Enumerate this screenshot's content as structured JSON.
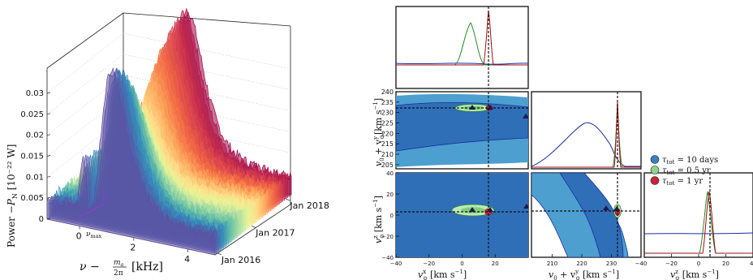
{
  "chart_data": [
    {
      "type": "area",
      "subtype": "3d-waterfall",
      "ylabel": "Power −P_N [10⁻²² W]",
      "ylabel_main": "Power −",
      "ylabel_sym": "P",
      "ylabel_sub": "N",
      "ylabel_unit": " [10⁻²² W]",
      "xlabel": "ν − m_a/2π [kHz]",
      "xlabel_nu": "ν −",
      "xlabel_frac_num": "m",
      "xlabel_frac_sub": "a",
      "xlabel_frac_den": "2π",
      "xlabel_unit": "[kHz]",
      "z_ticks": [
        "0",
        "0.005",
        "0.01",
        "0.015",
        "0.02",
        "0.025",
        "0.03"
      ],
      "z_tick_values": [
        0,
        0.005,
        0.01,
        0.015,
        0.02,
        0.025,
        0.03
      ],
      "x_ticks": [
        "0",
        "2",
        "4"
      ],
      "x_tick_values": [
        0,
        2,
        4
      ],
      "time_ticks": [
        "Jan 2016",
        "Jan 2017",
        "Jan 2018"
      ],
      "vmax_label": "ν_max",
      "vmax_sym": "ν",
      "vmax_sub": "max",
      "vmax_value": 0.2,
      "peak_power_approx": 0.034,
      "peak_frequency_approx": 1.2,
      "colormap": [
        "#5e4fa2",
        "#3288bd",
        "#66c2a5",
        "#abdda4",
        "#e6f598",
        "#fee08b",
        "#fdae61",
        "#f46d43",
        "#d53e4f",
        "#9e0142"
      ]
    },
    {
      "type": "corner",
      "parameters": [
        {
          "name": "v_⊙^x",
          "unit": "km s⁻¹",
          "range": [
            -40,
            40
          ],
          "truth": 11.1
        },
        {
          "name": "v_0 + v_⊙^y",
          "unit": "km s⁻¹",
          "range": [
            203,
            240
          ],
          "truth": 232.24
        },
        {
          "name": "v_⊙^z",
          "unit": "km s⁻¹",
          "range": [
            -40,
            40
          ],
          "truth": 7.25
        }
      ],
      "xlabels": {
        "vx_main": "v",
        "vx_sup": "x",
        "vx_sub": "⊙",
        "vx_unit": "[km s",
        "vy_main": "v",
        "vy_sub0": "0",
        "vy_plus": " + v",
        "vy_sup": "y",
        "vy_sub": "⊙",
        "vz_main": "v",
        "vz_sup": "z",
        "vz_sub": "⊙"
      },
      "unit_tail": "]",
      "unit_exp": "−1",
      "ticks": {
        "vx": [
          "−40",
          "−20",
          "0",
          "20"
        ],
        "vy_left": [
          "205",
          "210",
          "215",
          "220",
          "225",
          "230",
          "235",
          "240"
        ],
        "vy_bottom": [
          "210",
          "220",
          "230"
        ],
        "vz_left": [
          "−40",
          "−20",
          "0",
          "20",
          "40"
        ],
        "vz_bottom": [
          "−40",
          "−20",
          "0",
          "20",
          "40"
        ],
        "last_vz_bottom_partial": "40"
      },
      "legend": [
        {
          "label": "τ_tot = 10 days",
          "sym": "τ",
          "sub": "tot",
          "text": " = 10 days",
          "color": "#3a7fc1"
        },
        {
          "label": "τ_tot = 0.5 yr",
          "sym": "τ",
          "sub": "tot",
          "text": " = 0.5 yr",
          "color": "#8fd48a"
        },
        {
          "label": "τ_tot = 1 yr",
          "sym": "τ",
          "sub": "tot",
          "text": " = 1 yr",
          "color": "#c8233a"
        }
      ],
      "marginal_lines": {
        "blue": "#1a2fa0",
        "green": "#2a8a2a",
        "red": "#a01010"
      },
      "contour_colors": {
        "dark_blue": "#2f6fb8",
        "light_blue": "#4d9fd0",
        "green_fill": "#7ecf78",
        "green_light": "#bfe8b8",
        "red_fill": "#c8233a"
      }
    }
  ]
}
